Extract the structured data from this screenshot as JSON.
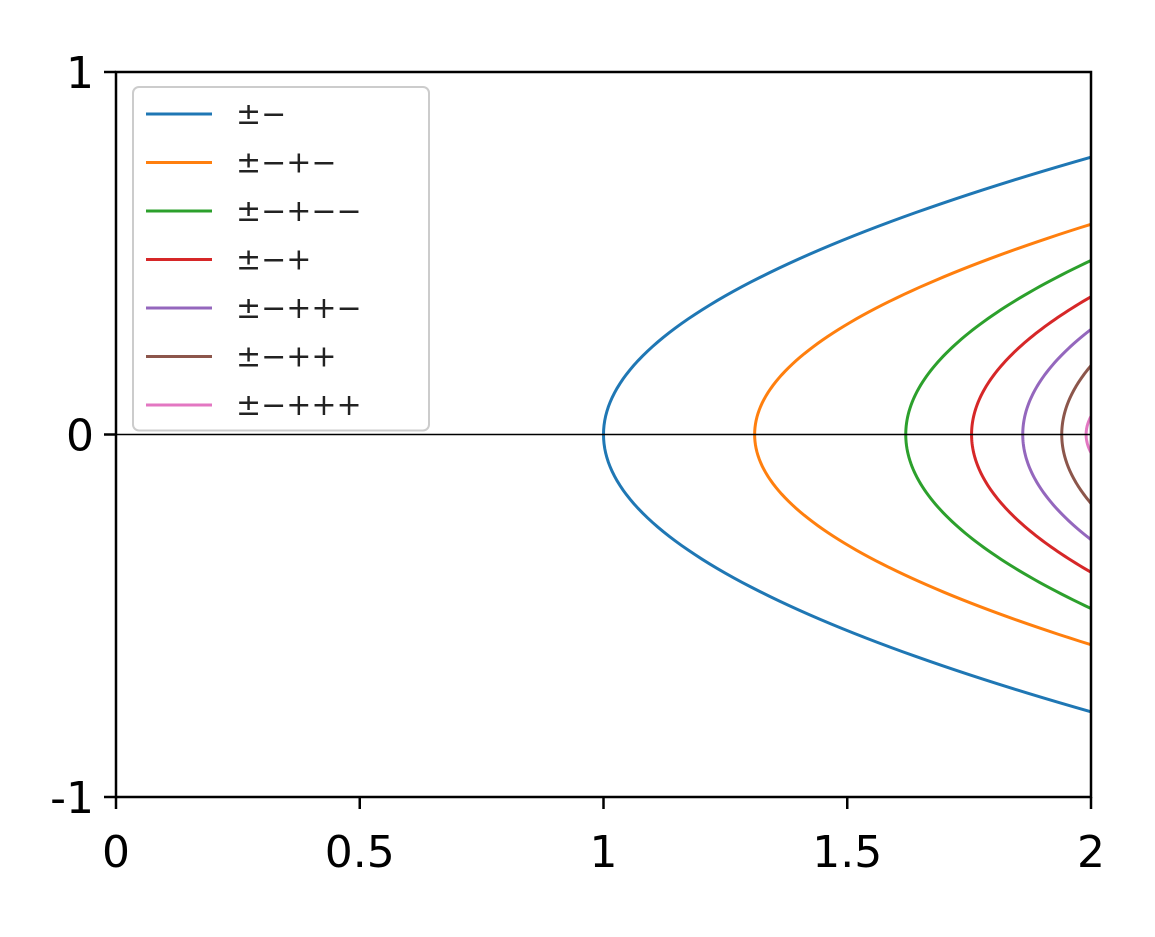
{
  "chart_data": {
    "type": "line",
    "title": "",
    "xlabel": "",
    "ylabel": "",
    "xlim": [
      0,
      2
    ],
    "ylim": [
      -1,
      1
    ],
    "x_ticks": [
      0,
      0.5,
      1,
      1.5,
      2
    ],
    "x_tick_labels": [
      "0",
      "0.5",
      "1",
      "1.5",
      "2"
    ],
    "y_ticks": [
      -1,
      0,
      1
    ],
    "y_tick_labels": [
      "-1",
      "0",
      "1"
    ],
    "grid": false,
    "zero_line": true,
    "legend_position": "upper-left",
    "series": [
      {
        "name": "±−",
        "color": "#1f77b4",
        "vertex_x": 1.0,
        "points": [
          [
            1.0,
            0.0
          ],
          [
            1.1,
            0.253
          ],
          [
            1.25,
            0.376
          ],
          [
            1.5,
            0.52
          ],
          [
            1.75,
            0.65
          ],
          [
            2.0,
            0.765
          ],
          [
            2.0,
            -0.765
          ],
          [
            1.75,
            -0.65
          ],
          [
            1.5,
            -0.52
          ],
          [
            1.25,
            -0.376
          ],
          [
            1.1,
            -0.253
          ]
        ]
      },
      {
        "name": "±−+−",
        "color": "#ff7f0e",
        "vertex_x": 1.31,
        "points": [
          [
            1.31,
            0.0
          ],
          [
            1.4,
            0.166
          ],
          [
            1.5,
            0.256
          ],
          [
            1.75,
            0.43
          ],
          [
            2.0,
            0.58
          ],
          [
            2.0,
            -0.58
          ],
          [
            1.75,
            -0.43
          ],
          [
            1.5,
            -0.256
          ],
          [
            1.4,
            -0.166
          ]
        ]
      },
      {
        "name": "±−+−−",
        "color": "#2ca02c",
        "vertex_x": 1.62,
        "points": [
          [
            1.62,
            0.0
          ],
          [
            1.7,
            0.17
          ],
          [
            1.8,
            0.29
          ],
          [
            1.9,
            0.38
          ],
          [
            2.0,
            0.48
          ],
          [
            2.0,
            -0.48
          ],
          [
            1.9,
            -0.38
          ],
          [
            1.8,
            -0.29
          ],
          [
            1.7,
            -0.17
          ]
        ]
      },
      {
        "name": "±−+",
        "color": "#d62728",
        "vertex_x": 1.755,
        "points": [
          [
            1.755,
            0.0
          ],
          [
            1.8,
            0.12
          ],
          [
            1.9,
            0.26
          ],
          [
            2.0,
            0.38
          ],
          [
            2.0,
            -0.38
          ],
          [
            1.9,
            -0.26
          ],
          [
            1.8,
            -0.12
          ]
        ]
      },
      {
        "name": "±−++−",
        "color": "#9467bd",
        "vertex_x": 1.86,
        "points": [
          [
            1.86,
            0.0
          ],
          [
            1.9,
            0.12
          ],
          [
            1.95,
            0.2
          ],
          [
            2.0,
            0.29
          ],
          [
            2.0,
            -0.29
          ],
          [
            1.95,
            -0.2
          ],
          [
            1.9,
            -0.12
          ]
        ]
      },
      {
        "name": "±−++",
        "color": "#8c564b",
        "vertex_x": 1.94,
        "points": [
          [
            1.94,
            0.0
          ],
          [
            1.97,
            0.11
          ],
          [
            2.0,
            0.19
          ],
          [
            2.0,
            -0.19
          ],
          [
            1.97,
            -0.11
          ]
        ]
      },
      {
        "name": "±−+++",
        "color": "#e377c2",
        "vertex_x": 1.99,
        "points": [
          [
            1.99,
            0.0
          ],
          [
            2.0,
            0.05
          ],
          [
            2.0,
            -0.05
          ]
        ]
      }
    ]
  }
}
